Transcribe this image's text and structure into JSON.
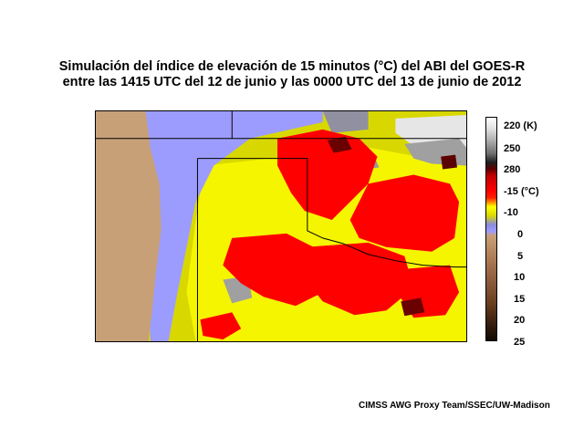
{
  "title": {
    "line1": "Simulación del índice de elevación de 15 minutos (°C) del ABI del GOES-R",
    "line2": "entre las 1415 UTC del 12 de junio y las 0000 UTC del 13 de junio de 2012"
  },
  "colorbar": {
    "labels": [
      "220 (K)",
      "250",
      "280",
      "-15 (°C)",
      "-10",
      "0",
      "5",
      "10",
      "15",
      "20",
      "25"
    ],
    "colors": {
      "cold_cloud_white": "#ffffff",
      "cloud_gray": "#a0a0a0",
      "dark_red": "#6a0000",
      "red": "#ff0000",
      "yellow": "#ffff00",
      "olive": "#c8c800",
      "lavender": "#9c9cff",
      "tan": "#c8a078",
      "dark_brown": "#100800"
    }
  },
  "credit": "CIMSS AWG Proxy Team/SSEC/UW-Madison"
}
